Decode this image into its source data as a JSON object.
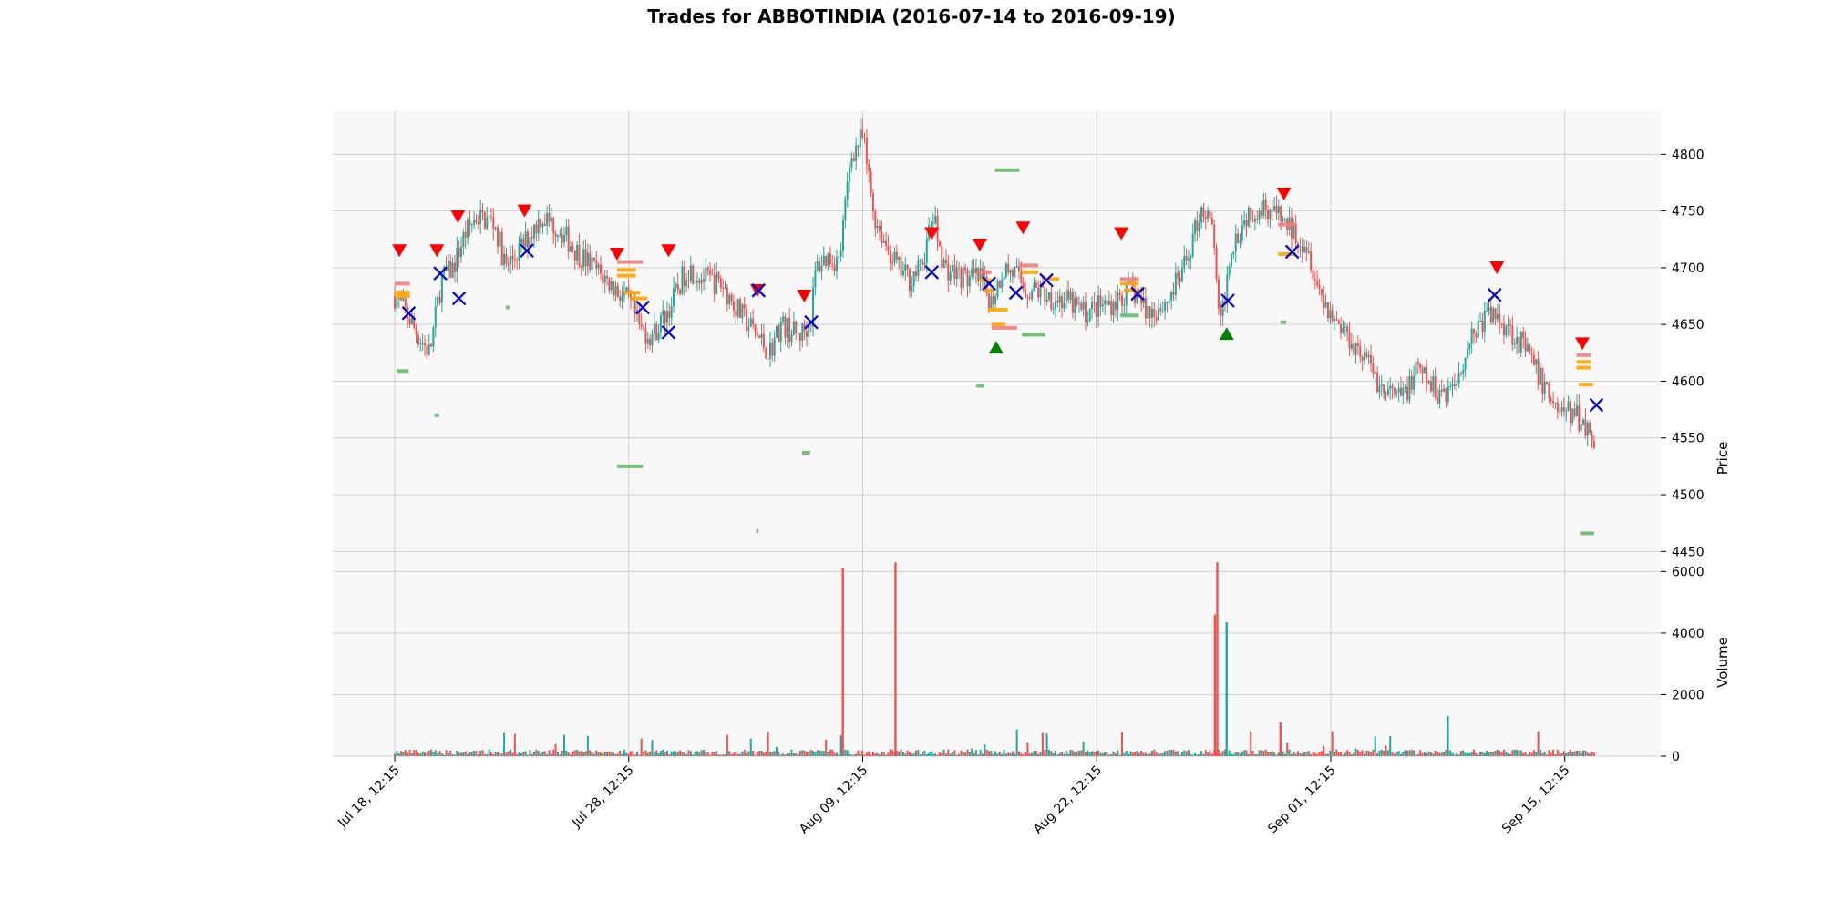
{
  "chart_data": {
    "type": "candlestick",
    "title": "Trades for ABBOTINDIA (2016-07-14 to 2016-09-19)",
    "symbol": "ABBOTINDIA",
    "date_range": [
      "2016-07-14",
      "2016-09-19"
    ],
    "price_panel": {
      "ylabel": "Price",
      "ylim": [
        4435,
        4838
      ],
      "yticks": [
        4450,
        4500,
        4550,
        4600,
        4650,
        4700,
        4750,
        4800
      ],
      "grid": true
    },
    "volume_panel": {
      "ylabel": "Volume",
      "ylim": [
        0,
        6100
      ],
      "yticks": [
        0,
        2000,
        4000,
        6000
      ],
      "grid": true
    },
    "x_axis": {
      "tick_labels": [
        "Jul 18, 12:15",
        "Jul 28, 12:15",
        "Aug 09, 12:15",
        "Aug 22, 12:15",
        "Sep 01, 12:15",
        "Sep 15, 12:15"
      ],
      "tick_positions": [
        0.0,
        0.2,
        0.4,
        0.6,
        0.8,
        1.0
      ],
      "xlim": [
        -0.053,
        1.082
      ]
    },
    "colors": {
      "up": "#26a69a",
      "down": "#ef5350",
      "sell_marker": "#ff0000",
      "buy_marker": "#008000",
      "exit_marker": "#0000cc",
      "order_level": "#ffa500",
      "background": "#f8f8f8",
      "grid": "#d0d0d0"
    },
    "price_path": [
      [
        0.0,
        4675
      ],
      [
        0.01,
        4660
      ],
      [
        0.02,
        4640
      ],
      [
        0.03,
        4625
      ],
      [
        0.04,
        4690
      ],
      [
        0.05,
        4700
      ],
      [
        0.06,
        4730
      ],
      [
        0.07,
        4745
      ],
      [
        0.085,
        4740
      ],
      [
        0.095,
        4700
      ],
      [
        0.11,
        4720
      ],
      [
        0.125,
        4745
      ],
      [
        0.14,
        4735
      ],
      [
        0.155,
        4715
      ],
      [
        0.17,
        4700
      ],
      [
        0.19,
        4680
      ],
      [
        0.2,
        4670
      ],
      [
        0.21,
        4645
      ],
      [
        0.22,
        4640
      ],
      [
        0.235,
        4665
      ],
      [
        0.25,
        4700
      ],
      [
        0.265,
        4690
      ],
      [
        0.28,
        4685
      ],
      [
        0.295,
        4660
      ],
      [
        0.31,
        4640
      ],
      [
        0.32,
        4625
      ],
      [
        0.33,
        4650
      ],
      [
        0.345,
        4640
      ],
      [
        0.355,
        4650
      ],
      [
        0.36,
        4700
      ],
      [
        0.37,
        4710
      ],
      [
        0.38,
        4705
      ],
      [
        0.39,
        4800
      ],
      [
        0.4,
        4815
      ],
      [
        0.41,
        4745
      ],
      [
        0.42,
        4720
      ],
      [
        0.43,
        4700
      ],
      [
        0.44,
        4690
      ],
      [
        0.45,
        4700
      ],
      [
        0.46,
        4745
      ],
      [
        0.47,
        4700
      ],
      [
        0.48,
        4695
      ],
      [
        0.49,
        4690
      ],
      [
        0.5,
        4690
      ],
      [
        0.51,
        4670
      ],
      [
        0.52,
        4700
      ],
      [
        0.53,
        4695
      ],
      [
        0.54,
        4680
      ],
      [
        0.55,
        4680
      ],
      [
        0.56,
        4675
      ],
      [
        0.575,
        4670
      ],
      [
        0.59,
        4660
      ],
      [
        0.6,
        4665
      ],
      [
        0.615,
        4670
      ],
      [
        0.63,
        4680
      ],
      [
        0.645,
        4660
      ],
      [
        0.66,
        4670
      ],
      [
        0.675,
        4700
      ],
      [
        0.69,
        4755
      ],
      [
        0.7,
        4730
      ],
      [
        0.705,
        4640
      ],
      [
        0.715,
        4720
      ],
      [
        0.73,
        4750
      ],
      [
        0.745,
        4755
      ],
      [
        0.76,
        4740
      ],
      [
        0.77,
        4730
      ],
      [
        0.78,
        4720
      ],
      [
        0.79,
        4680
      ],
      [
        0.8,
        4660
      ],
      [
        0.815,
        4640
      ],
      [
        0.83,
        4620
      ],
      [
        0.845,
        4590
      ],
      [
        0.86,
        4585
      ],
      [
        0.875,
        4610
      ],
      [
        0.89,
        4590
      ],
      [
        0.905,
        4595
      ],
      [
        0.92,
        4640
      ],
      [
        0.935,
        4660
      ],
      [
        0.95,
        4650
      ],
      [
        0.965,
        4630
      ],
      [
        0.98,
        4600
      ],
      [
        0.995,
        4575
      ],
      [
        1.01,
        4570
      ],
      [
        1.025,
        4550
      ]
    ],
    "volume_spikes": [
      {
        "x": 0.383,
        "volume": 6100,
        "direction": "down"
      },
      {
        "x": 0.428,
        "volume": 6300,
        "direction": "down"
      },
      {
        "x": 0.703,
        "volume": 6300,
        "direction": "down"
      },
      {
        "x": 0.701,
        "volume": 4600,
        "direction": "down"
      },
      {
        "x": 0.711,
        "volume": 4350,
        "direction": "up"
      },
      {
        "x": 0.9,
        "volume": 1300,
        "direction": "up"
      },
      {
        "x": 0.757,
        "volume": 1100,
        "direction": "down"
      }
    ],
    "sell_signals": [
      {
        "x": 0.004,
        "price": 4715
      },
      {
        "x": 0.036,
        "price": 4715
      },
      {
        "x": 0.054,
        "price": 4745
      },
      {
        "x": 0.111,
        "price": 4750
      },
      {
        "x": 0.19,
        "price": 4712
      },
      {
        "x": 0.234,
        "price": 4715
      },
      {
        "x": 0.31,
        "price": 4680
      },
      {
        "x": 0.35,
        "price": 4675
      },
      {
        "x": 0.459,
        "price": 4730
      },
      {
        "x": 0.5,
        "price": 4720
      },
      {
        "x": 0.537,
        "price": 4735
      },
      {
        "x": 0.621,
        "price": 4730
      },
      {
        "x": 0.76,
        "price": 4765
      },
      {
        "x": 0.942,
        "price": 4700
      },
      {
        "x": 1.015,
        "price": 4633
      }
    ],
    "buy_signals": [
      {
        "x": 0.514,
        "price": 4630
      },
      {
        "x": 0.711,
        "price": 4642
      }
    ],
    "exits": [
      {
        "x": 0.012,
        "price": 4660
      },
      {
        "x": 0.039,
        "price": 4695
      },
      {
        "x": 0.055,
        "price": 4673
      },
      {
        "x": 0.113,
        "price": 4715
      },
      {
        "x": 0.212,
        "price": 4665
      },
      {
        "x": 0.234,
        "price": 4643
      },
      {
        "x": 0.311,
        "price": 4680
      },
      {
        "x": 0.356,
        "price": 4652
      },
      {
        "x": 0.459,
        "price": 4696
      },
      {
        "x": 0.508,
        "price": 4686
      },
      {
        "x": 0.531,
        "price": 4678
      },
      {
        "x": 0.557,
        "price": 4689
      },
      {
        "x": 0.635,
        "price": 4677
      },
      {
        "x": 0.712,
        "price": 4671
      },
      {
        "x": 0.767,
        "price": 4714
      },
      {
        "x": 0.94,
        "price": 4676
      },
      {
        "x": 1.027,
        "price": 4579
      }
    ],
    "order_levels": [
      {
        "x0": 0.0,
        "x1": 0.013,
        "price": 4686,
        "color": "#f08080"
      },
      {
        "x0": 0.0,
        "x1": 0.013,
        "price": 4678,
        "color": "#ffa500"
      },
      {
        "x0": 0.0,
        "x1": 0.013,
        "price": 4675,
        "color": "#ffa500"
      },
      {
        "x0": 0.002,
        "x1": 0.012,
        "price": 4609,
        "color": "#66bb6a"
      },
      {
        "x0": 0.034,
        "x1": 0.038,
        "price": 4570,
        "color": "#66bb6a"
      },
      {
        "x0": 0.19,
        "x1": 0.212,
        "price": 4705,
        "color": "#f08080"
      },
      {
        "x0": 0.19,
        "x1": 0.206,
        "price": 4698,
        "color": "#ffa500"
      },
      {
        "x0": 0.19,
        "x1": 0.206,
        "price": 4693,
        "color": "#ffa500"
      },
      {
        "x0": 0.196,
        "x1": 0.21,
        "price": 4678,
        "color": "#ffa500"
      },
      {
        "x0": 0.201,
        "x1": 0.216,
        "price": 4673,
        "color": "#ffa500"
      },
      {
        "x0": 0.19,
        "x1": 0.212,
        "price": 4525,
        "color": "#66bb6a"
      },
      {
        "x0": 0.348,
        "x1": 0.355,
        "price": 4537,
        "color": "#66bb6a"
      },
      {
        "x0": 0.309,
        "x1": 0.311,
        "price": 4468,
        "color": "#66bb6a"
      },
      {
        "x0": 0.095,
        "x1": 0.098,
        "price": 4665,
        "color": "#66bb6a"
      },
      {
        "x0": 0.5,
        "x1": 0.51,
        "price": 4696,
        "color": "#f08080"
      },
      {
        "x0": 0.5,
        "x1": 0.51,
        "price": 4689,
        "color": "#ffa500"
      },
      {
        "x0": 0.503,
        "x1": 0.513,
        "price": 4680,
        "color": "#ffa500"
      },
      {
        "x0": 0.507,
        "x1": 0.524,
        "price": 4663,
        "color": "#ffa500"
      },
      {
        "x0": 0.51,
        "x1": 0.522,
        "price": 4650,
        "color": "#ffa500"
      },
      {
        "x0": 0.51,
        "x1": 0.532,
        "price": 4647,
        "color": "#f08080"
      },
      {
        "x0": 0.513,
        "x1": 0.534,
        "price": 4786,
        "color": "#66bb6a"
      },
      {
        "x0": 0.533,
        "x1": 0.55,
        "price": 4702,
        "color": "#f08080"
      },
      {
        "x0": 0.536,
        "x1": 0.55,
        "price": 4696,
        "color": "#ffa500"
      },
      {
        "x0": 0.536,
        "x1": 0.556,
        "price": 4641,
        "color": "#66bb6a"
      },
      {
        "x0": 0.555,
        "x1": 0.568,
        "price": 4690,
        "color": "#ffa500"
      },
      {
        "x0": 0.497,
        "x1": 0.504,
        "price": 4596,
        "color": "#66bb6a"
      },
      {
        "x0": 0.62,
        "x1": 0.636,
        "price": 4690,
        "color": "#f08080"
      },
      {
        "x0": 0.62,
        "x1": 0.636,
        "price": 4686,
        "color": "#ffa500"
      },
      {
        "x0": 0.623,
        "x1": 0.638,
        "price": 4680,
        "color": "#ffa500"
      },
      {
        "x0": 0.62,
        "x1": 0.636,
        "price": 4658,
        "color": "#66bb6a"
      },
      {
        "x0": 0.755,
        "x1": 0.77,
        "price": 4738,
        "color": "#f08080"
      },
      {
        "x0": 0.755,
        "x1": 0.77,
        "price": 4712,
        "color": "#ffa500"
      },
      {
        "x0": 0.757,
        "x1": 0.762,
        "price": 4652,
        "color": "#66bb6a"
      },
      {
        "x0": 1.01,
        "x1": 1.022,
        "price": 4623,
        "color": "#f08080"
      },
      {
        "x0": 1.01,
        "x1": 1.022,
        "price": 4617,
        "color": "#ffa500"
      },
      {
        "x0": 1.01,
        "x1": 1.022,
        "price": 4612,
        "color": "#ffa500"
      },
      {
        "x0": 1.012,
        "x1": 1.024,
        "price": 4597,
        "color": "#ffa500"
      },
      {
        "x0": 1.013,
        "x1": 1.025,
        "price": 4466,
        "color": "#66bb6a"
      }
    ]
  }
}
